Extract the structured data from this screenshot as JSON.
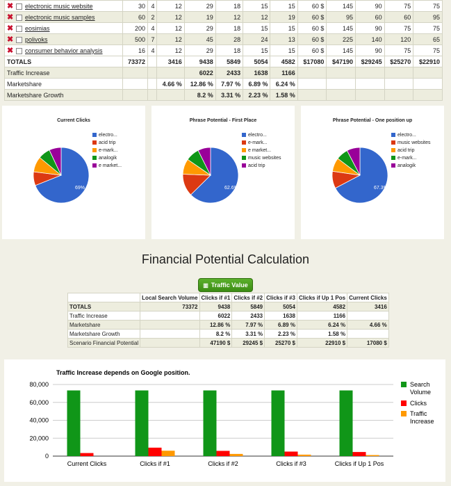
{
  "keyword_table": {
    "rows": [
      {
        "keyword": "electronic music website",
        "c": [
          "30",
          "4",
          "12",
          "29",
          "18",
          "15",
          "15",
          "60 $",
          "145",
          "90",
          "75",
          "75"
        ]
      },
      {
        "keyword": "electronic music samples",
        "c": [
          "60",
          "2",
          "12",
          "19",
          "12",
          "12",
          "19",
          "60 $",
          "95",
          "60",
          "60",
          "95"
        ]
      },
      {
        "keyword": "eosimias",
        "c": [
          "200",
          "4",
          "12",
          "29",
          "18",
          "15",
          "15",
          "60 $",
          "145",
          "90",
          "75",
          "75"
        ]
      },
      {
        "keyword": "polivoks",
        "c": [
          "500",
          "7",
          "12",
          "45",
          "28",
          "24",
          "13",
          "60 $",
          "225",
          "140",
          "120",
          "65"
        ]
      },
      {
        "keyword": "consumer behavior analysis",
        "c": [
          "16",
          "4",
          "12",
          "29",
          "18",
          "15",
          "15",
          "60 $",
          "145",
          "90",
          "75",
          "75"
        ]
      }
    ],
    "totals": {
      "label": "TOTALS",
      "c": [
        "73372",
        "",
        "3416",
        "9438",
        "5849",
        "5054",
        "4582",
        "$17080",
        "$47190",
        "$29245",
        "$25270",
        "$22910"
      ]
    },
    "traffic_increase": {
      "label": "Traffic Increase",
      "c": [
        "",
        "",
        "",
        "6022",
        "2433",
        "1638",
        "1166",
        "",
        "",
        "",
        "",
        ""
      ]
    },
    "marketshare": {
      "label": "Marketshare",
      "c": [
        "",
        "",
        "4.66 %",
        "12.86 %",
        "7.97 %",
        "6.89 %",
        "6.24 %",
        "",
        "",
        "",
        "",
        ""
      ]
    },
    "marketshare_growth": {
      "label": "Marketshare Growth",
      "c": [
        "",
        "",
        "",
        "8.2 %",
        "3.31 %",
        "2.23 %",
        "1.58 %",
        "",
        "",
        "",
        "",
        ""
      ]
    }
  },
  "pies": [
    {
      "title": "Current Clicks",
      "center_label": "69%",
      "legend": [
        "electro...",
        "acid trip",
        "e-mark...",
        "analogik",
        "e market..."
      ],
      "slices": [
        {
          "v": 69,
          "color": "#3366cc"
        },
        {
          "v": 8,
          "color": "#dc3912"
        },
        {
          "v": 9,
          "color": "#ff9900"
        },
        {
          "v": 7,
          "color": "#109618"
        },
        {
          "v": 7,
          "color": "#990099"
        }
      ]
    },
    {
      "title": "Phrase Potential - First Place",
      "center_label": "62.6%",
      "legend": [
        "electro...",
        "e-mark...",
        "e market...",
        "music websites",
        "acid trip"
      ],
      "slices": [
        {
          "v": 62.6,
          "color": "#3366cc"
        },
        {
          "v": 13,
          "color": "#dc3912"
        },
        {
          "v": 9,
          "color": "#ff9900"
        },
        {
          "v": 8,
          "color": "#109618"
        },
        {
          "v": 7.4,
          "color": "#990099"
        }
      ]
    },
    {
      "title": "Phrase Potential - One position up",
      "center_label": "67.3%",
      "legend": [
        "electro...",
        "music websites",
        "acid trip",
        "e-mark...",
        "analogik"
      ],
      "slices": [
        {
          "v": 67.3,
          "color": "#3366cc"
        },
        {
          "v": 10,
          "color": "#dc3912"
        },
        {
          "v": 8,
          "color": "#ff9900"
        },
        {
          "v": 7,
          "color": "#109618"
        },
        {
          "v": 7.7,
          "color": "#990099"
        }
      ]
    }
  ],
  "heading": "Financial Potential Calculation",
  "traffic_button": "Traffic Value",
  "fin_table": {
    "headers": [
      "",
      "Local Search Volume",
      "Clicks if #1",
      "Clicks if #2",
      "Clicks if #3",
      "Clicks if Up 1 Pos",
      "Current Clicks"
    ],
    "rows": [
      {
        "label": "TOTALS",
        "c": [
          "73372",
          "9438",
          "5849",
          "5054",
          "4582",
          "3416"
        ],
        "bold": true
      },
      {
        "label": "Traffic Increase",
        "c": [
          "",
          "6022",
          "2433",
          "1638",
          "1166",
          ""
        ]
      },
      {
        "label": "Marketshare",
        "c": [
          "",
          "12.86 %",
          "7.97 %",
          "6.89 %",
          "6.24 %",
          "4.66 %"
        ]
      },
      {
        "label": "Marketshare Growth",
        "c": [
          "",
          "8.2 %",
          "3.31 %",
          "2.23 %",
          "1.58 %",
          ""
        ]
      },
      {
        "label": "Scenario Financial Potential",
        "c": [
          "",
          "47190 $",
          "29245 $",
          "25270 $",
          "22910 $",
          "17080 $"
        ]
      }
    ]
  },
  "chart_data": {
    "type": "bar",
    "title": "Traffic Increase depends on Google position.",
    "categories": [
      "Current Clicks",
      "Clicks if #1",
      "Clicks if #2",
      "Clicks if #3",
      "Clicks if Up 1 Pos"
    ],
    "series": [
      {
        "name": "Search Volume",
        "color": "#109618",
        "values": [
          73372,
          73372,
          73372,
          73372,
          73372
        ]
      },
      {
        "name": "Clicks",
        "color": "#ff0000",
        "values": [
          3416,
          9438,
          5849,
          5054,
          4582
        ]
      },
      {
        "name": "Traffic Increase",
        "color": "#ff9900",
        "values": [
          0,
          6022,
          2433,
          1638,
          1166
        ]
      }
    ],
    "ylim": [
      0,
      80000
    ],
    "yticks": [
      "0",
      "20,000",
      "40,000",
      "60,000",
      "80,000"
    ],
    "legend": "right",
    "grid": true
  }
}
